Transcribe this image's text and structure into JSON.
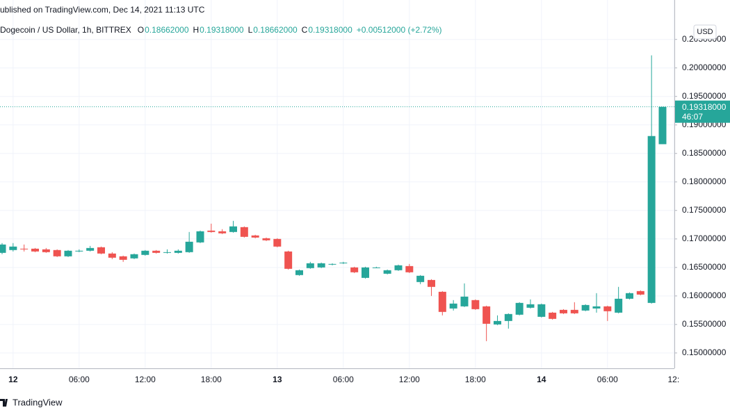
{
  "header": {
    "published": "ublished on TradingView.com, Dec 14, 2021 11:13 UTC"
  },
  "chart_data": {
    "type": "candlestick",
    "symbol": "Dogecoin / US Dollar, 1h, BITTREX",
    "ohlc_legend": [
      {
        "key": "O",
        "value": "0.18662000"
      },
      {
        "key": "H",
        "value": "0.19318000"
      },
      {
        "key": "L",
        "value": "0.18662000"
      },
      {
        "key": "C",
        "value": "0.19318000"
      }
    ],
    "change": "+0.00512000 (+2.72%)",
    "currency": "USD",
    "last_price_label": "0.19318000",
    "countdown": "46:07",
    "up_color": "#26a69a",
    "down_color": "#ef5350",
    "grid": true,
    "categories": [
      null,
      "12",
      null,
      null,
      null,
      null,
      null,
      "06:00",
      null,
      null,
      null,
      null,
      null,
      "12:00",
      null,
      null,
      null,
      null,
      null,
      "18:00",
      null,
      null,
      null,
      null,
      null,
      "13",
      null,
      null,
      null,
      null,
      null,
      "06:00",
      null,
      null,
      null,
      null,
      null,
      "12:00",
      null,
      null,
      null,
      null,
      null,
      "18:00",
      null,
      null,
      null,
      null,
      null,
      "14",
      null,
      null,
      null,
      null,
      null,
      "06:00",
      null,
      null,
      null,
      null,
      null,
      "12:"
    ],
    "open": [
      0.16756,
      0.16805,
      0.16829,
      0.16829,
      0.16817,
      0.16805,
      0.16695,
      0.1678,
      0.16793,
      0.16854,
      0.16744,
      0.16695,
      0.16659,
      0.1672,
      0.16793,
      0.16768,
      0.16756,
      0.16768,
      0.16939,
      0.17146,
      0.17134,
      0.17122,
      0.17207,
      0.17061,
      0.17012,
      0.17,
      0.1678,
      0.16366,
      0.16488,
      0.165,
      0.16549,
      0.16573,
      0.165,
      0.16317,
      0.165,
      0.1639,
      0.16451,
      0.16524,
      0.16244,
      0.1628,
      0.16073,
      0.1578,
      0.15817,
      0.15927,
      0.15817,
      0.155,
      0.15561,
      0.15671,
      0.15793,
      0.15634,
      0.15707,
      0.15756,
      0.15756,
      0.15744,
      0.1578,
      0.15817,
      0.15707,
      0.15951,
      0.16085,
      0.15878,
      0.18662,
      null
    ],
    "high": [
      0.16927,
      0.16927,
      0.16902,
      0.16841,
      0.16841,
      0.16817,
      0.16805,
      0.16817,
      0.16878,
      0.16866,
      0.16768,
      0.16707,
      0.16744,
      0.16805,
      0.16805,
      0.16817,
      0.16817,
      0.17122,
      0.17146,
      0.17268,
      0.17171,
      0.17317,
      0.1722,
      0.17073,
      0.17024,
      0.17012,
      0.16793,
      0.16463,
      0.16598,
      0.16585,
      0.16573,
      0.16598,
      0.16512,
      0.16512,
      0.16512,
      0.16463,
      0.16549,
      0.16561,
      0.16366,
      0.16293,
      0.16085,
      0.15927,
      0.1622,
      0.15939,
      0.15829,
      0.15659,
      0.15695,
      0.1589,
      0.15939,
      0.15866,
      0.1572,
      0.15768,
      0.1589,
      0.15854,
      0.16049,
      0.15829,
      0.16159,
      0.16061,
      0.16098,
      0.2022,
      0.19318,
      null
    ],
    "low": [
      0.16732,
      0.1678,
      0.1678,
      0.16768,
      0.16756,
      0.16683,
      0.16683,
      0.16768,
      0.1678,
      0.16732,
      0.16646,
      0.16598,
      0.16646,
      0.16707,
      0.16744,
      0.16744,
      0.16744,
      0.16756,
      0.16927,
      0.1711,
      0.17085,
      0.1711,
      0.17024,
      0.17012,
      0.16963,
      0.16854,
      0.16463,
      0.16354,
      0.16476,
      0.16488,
      0.16537,
      0.16561,
      0.16402,
      0.16305,
      0.16488,
      0.16378,
      0.16439,
      0.16402,
      0.16207,
      0.16,
      0.15659,
      0.15744,
      0.15805,
      0.15756,
      0.15207,
      0.15488,
      0.15427,
      0.15659,
      0.1578,
      0.15622,
      0.15585,
      0.15683,
      0.15683,
      0.15732,
      0.15707,
      0.15561,
      0.15695,
      0.15939,
      0.16012,
      0.15866,
      0.18662,
      null
    ],
    "close": [
      0.16902,
      0.16866,
      0.16817,
      0.1678,
      0.16768,
      0.16695,
      0.16793,
      0.16793,
      0.16841,
      0.16744,
      0.16671,
      0.16634,
      0.16732,
      0.16793,
      0.16756,
      0.16768,
      0.16793,
      0.16951,
      0.17134,
      0.17122,
      0.17098,
      0.1722,
      0.17037,
      0.17024,
      0.16976,
      0.16866,
      0.16476,
      0.16451,
      0.16573,
      0.16573,
      0.16561,
      0.16585,
      0.16415,
      0.165,
      0.165,
      0.16451,
      0.16537,
      0.16415,
      0.16354,
      0.16159,
      0.1572,
      0.15866,
      0.15988,
      0.15768,
      0.15512,
      0.15561,
      0.15683,
      0.15878,
      0.15854,
      0.15854,
      0.15598,
      0.15695,
      0.15695,
      0.15841,
      0.15817,
      0.15732,
      0.15951,
      0.16049,
      0.16024,
      0.18805,
      0.19318,
      null
    ],
    "ylim": [
      0.1473,
      0.2085
    ],
    "yticks": [
      {
        "value": 0.15,
        "label": "0.15000000"
      },
      {
        "value": 0.155,
        "label": "0.15500000"
      },
      {
        "value": 0.16,
        "label": "0.16000000"
      },
      {
        "value": 0.165,
        "label": "0.16500000"
      },
      {
        "value": 0.17,
        "label": "0.17000000"
      },
      {
        "value": 0.175,
        "label": "0.17500000"
      },
      {
        "value": 0.18,
        "label": "0.18000000"
      },
      {
        "value": 0.185,
        "label": "0.18500000"
      },
      {
        "value": 0.19,
        "label": "0.19000000"
      },
      {
        "value": 0.195,
        "label": "0.19500000"
      },
      {
        "value": 0.2,
        "label": "0.20000000"
      },
      {
        "value": 0.205,
        "label": "0.20500000"
      }
    ]
  },
  "footer": {
    "brand": "TradingView"
  }
}
